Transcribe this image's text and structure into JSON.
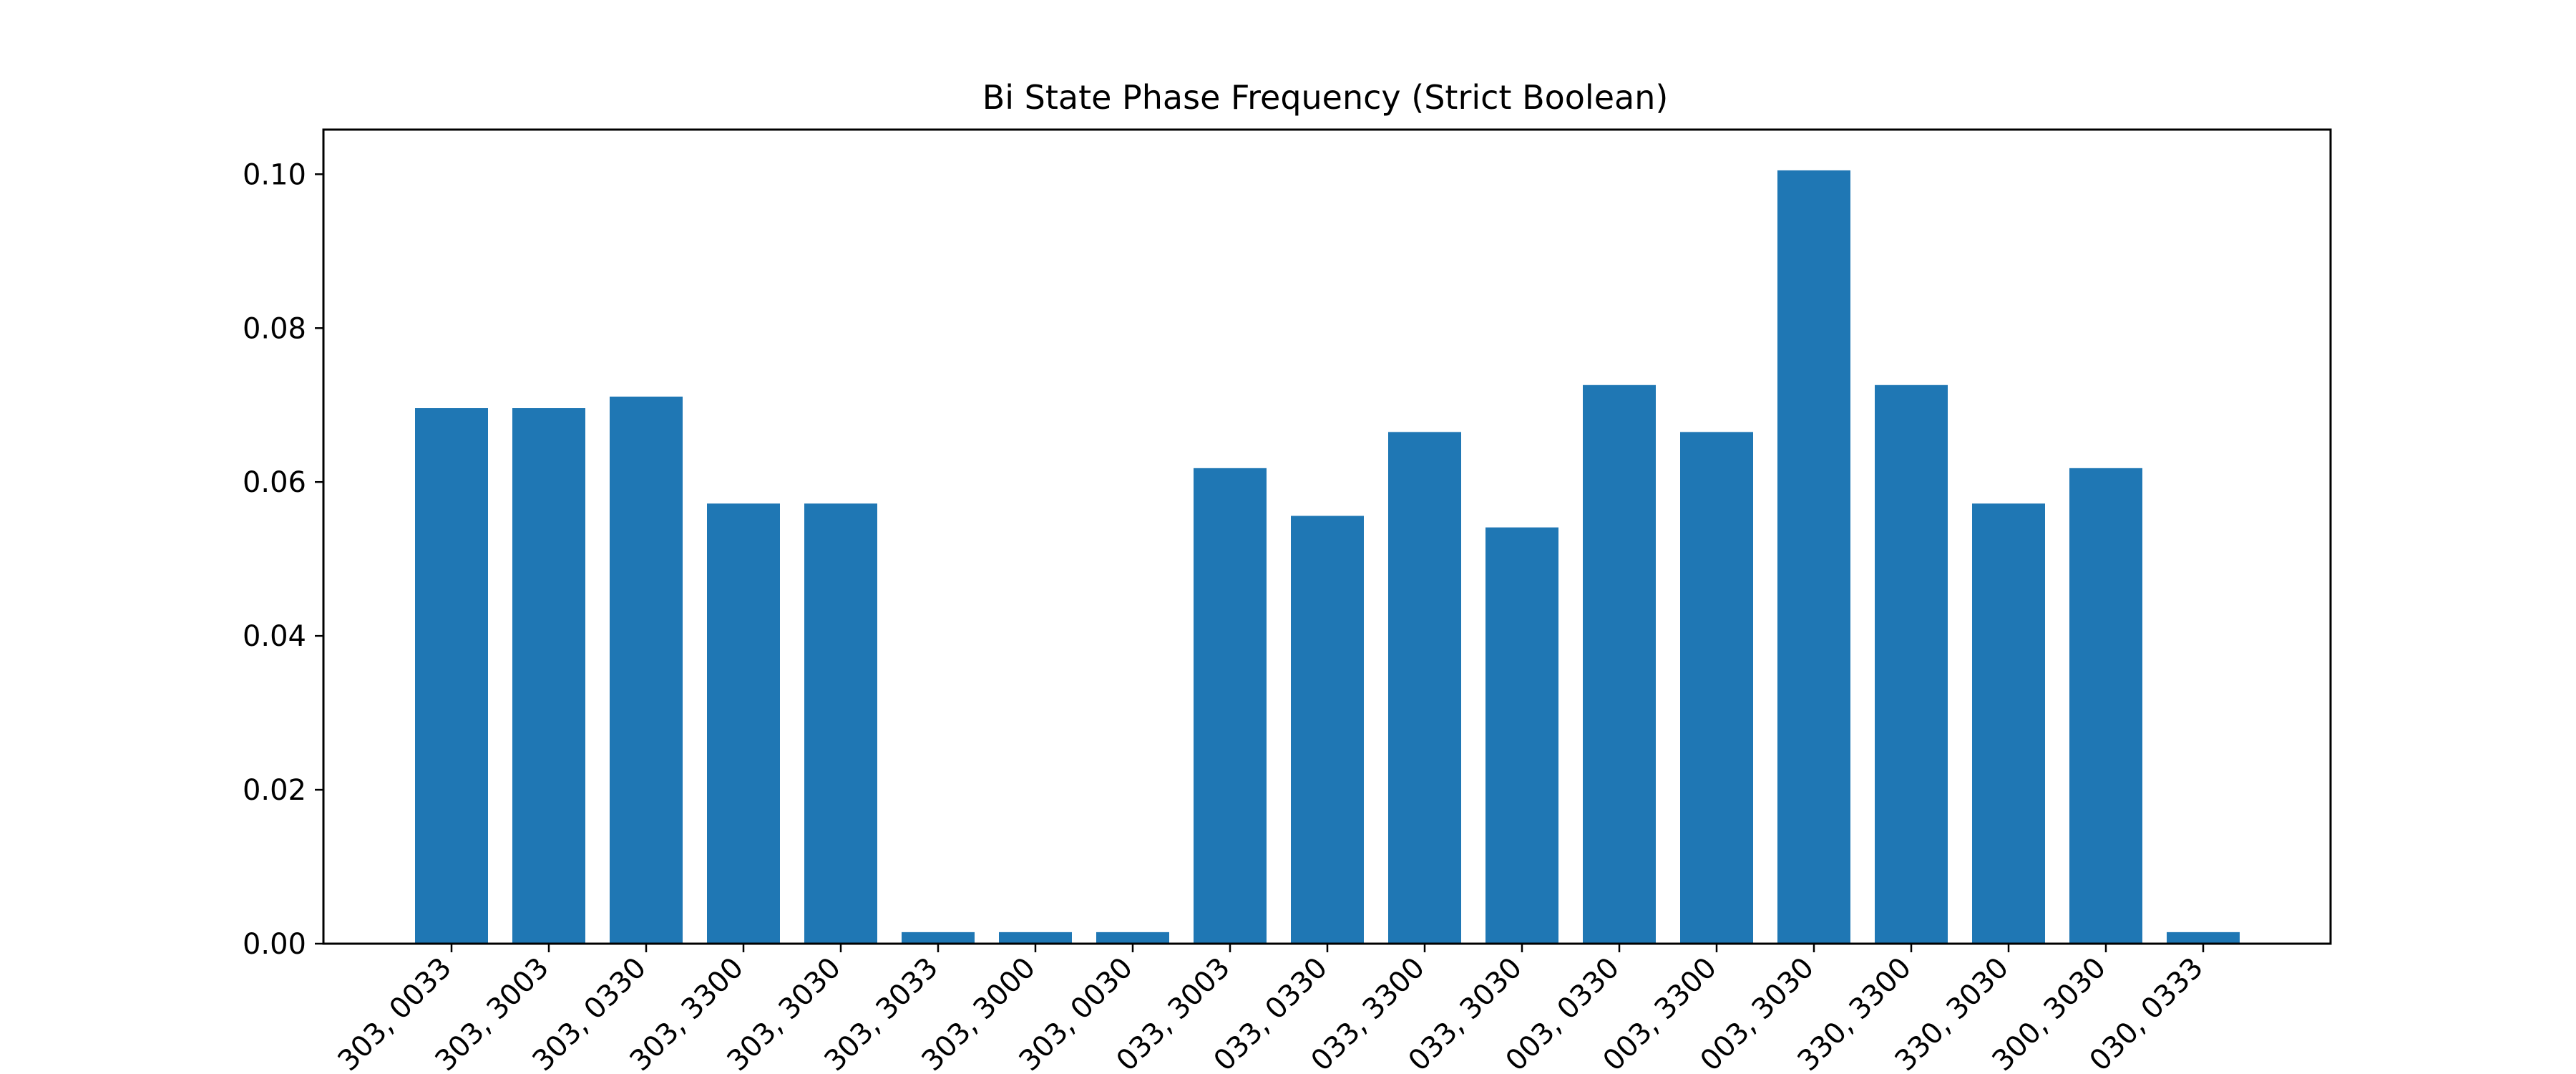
{
  "chart_data": {
    "type": "bar",
    "title": "Bi State Phase Frequency (Strict Boolean)",
    "xlabel": "",
    "ylabel": "",
    "categories": [
      "303, 0033",
      "303, 3003",
      "303, 0330",
      "303, 3300",
      "303, 3030",
      "303, 3033",
      "303, 3000",
      "303, 0030",
      "033, 3003",
      "033, 0330",
      "033, 3300",
      "033, 3030",
      "003, 0330",
      "003, 3300",
      "003, 3030",
      "330, 3300",
      "330, 3030",
      "300, 3030",
      "030, 0333"
    ],
    "values": [
      0.0696,
      0.0696,
      0.0711,
      0.0572,
      0.0572,
      0.0015,
      0.0015,
      0.0015,
      0.0618,
      0.0556,
      0.0665,
      0.0541,
      0.0726,
      0.0665,
      0.1005,
      0.0726,
      0.0572,
      0.0618,
      0.0015
    ],
    "ylim": [
      0,
      0.1058
    ],
    "yticks": [
      "0.00",
      "0.02",
      "0.04",
      "0.06",
      "0.08",
      "0.10"
    ],
    "grid": false,
    "legend": "none",
    "bar_color": "#1f77b4"
  }
}
